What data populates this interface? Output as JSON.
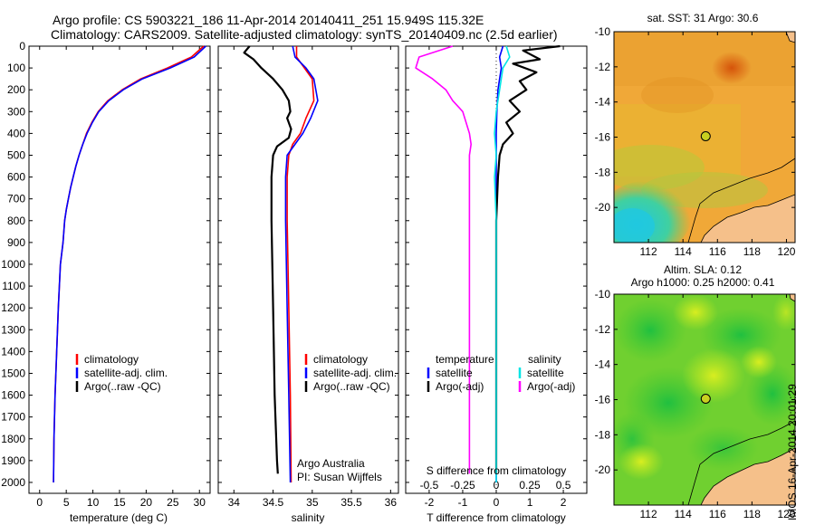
{
  "header": {
    "title_line1": "Argo profile: CS 5903221_186 11-Apr-2014 20140411_251 15.949S 115.32E",
    "title_line2": "Climatology: CARS2009. Satellite-adjusted climatology: synTS_20140409.nc (2.5d earlier)"
  },
  "stamp": "IMOS 16-Apr-2014 20:01:29",
  "chart_data": [
    {
      "type": "line",
      "ylim": [
        2050,
        0
      ],
      "yticks": [
        "0",
        "100",
        "200",
        "300",
        "400",
        "500",
        "600",
        "700",
        "800",
        "900",
        "1000",
        "1100",
        "1200",
        "1300",
        "1400",
        "1500",
        "1600",
        "1700",
        "1800",
        "1900",
        "2000"
      ],
      "xlabel": "temperature (deg C)",
      "xlim": [
        -2,
        32
      ],
      "xticks": [
        "0",
        "5",
        "10",
        "15",
        "20",
        "25",
        "30"
      ],
      "legend": {
        "position": "lower-center",
        "entries": [
          "climatology",
          "satellite-adj. clim.",
          "Argo(..raw -QC)"
        ]
      },
      "series": [
        {
          "name": "climatology",
          "color": "#ff0000",
          "x": [
            30.8,
            28.5,
            24,
            19,
            15.5,
            12.8,
            11,
            9.8,
            8.8,
            8.1,
            7.4,
            6.8,
            6.3,
            5.8,
            5.4,
            5.0,
            4.7,
            4.4,
            3.9,
            3.5,
            3.2,
            2.9,
            2.7,
            2.6
          ],
          "y": [
            0,
            50,
            100,
            150,
            200,
            250,
            300,
            350,
            400,
            450,
            500,
            550,
            600,
            650,
            700,
            750,
            800,
            900,
            1000,
            1200,
            1400,
            1600,
            1800,
            2000
          ]
        },
        {
          "name": "satellite-adj. clim.",
          "color": "#0000ff",
          "x": [
            31.2,
            29,
            24.5,
            19.3,
            15.7,
            13,
            11.1,
            9.9,
            8.9,
            8.1,
            7.4,
            6.8,
            6.3,
            5.8,
            5.4,
            5.0,
            4.7,
            4.4,
            3.9,
            3.5,
            3.2,
            2.9,
            2.7,
            2.6
          ],
          "y": [
            0,
            50,
            100,
            150,
            200,
            250,
            300,
            350,
            400,
            450,
            500,
            550,
            600,
            650,
            700,
            750,
            800,
            900,
            1000,
            1200,
            1400,
            1600,
            1800,
            2000
          ]
        }
      ]
    },
    {
      "type": "line",
      "ylim": [
        2050,
        0
      ],
      "xlabel": "salinity",
      "xlim": [
        33.8,
        36.1
      ],
      "xticks": [
        "34",
        "34.5",
        "35",
        "35.5",
        "36"
      ],
      "legend": {
        "position": "lower-center",
        "entries": [
          "climatology",
          "satellite-adj. clim.",
          "Argo(..raw -QC)"
        ]
      },
      "annotations": [
        "Argo Australia",
        "PI: Susan Wijffels"
      ],
      "series": [
        {
          "name": "climatology",
          "color": "#ff0000",
          "x": [
            34.8,
            34.8,
            34.9,
            35.0,
            35.02,
            34.92,
            34.85,
            34.75,
            34.7,
            34.68,
            34.68,
            34.7,
            34.72,
            34.73
          ],
          "y": [
            0,
            50,
            100,
            150,
            250,
            330,
            400,
            450,
            500,
            600,
            800,
            1200,
            1600,
            2000
          ]
        },
        {
          "name": "satellite-adj. clim.",
          "color": "#0000ff",
          "x": [
            34.75,
            34.78,
            34.92,
            35.02,
            35.07,
            34.98,
            34.88,
            34.78,
            34.68,
            34.66,
            34.66,
            34.68,
            34.7,
            34.72
          ],
          "y": [
            0,
            50,
            100,
            150,
            250,
            330,
            400,
            450,
            500,
            600,
            800,
            1200,
            1600,
            2000
          ]
        },
        {
          "name": "Argo(..raw -QC)",
          "color": "#000000",
          "x": [
            34.2,
            34.13,
            34.25,
            34.35,
            34.5,
            34.62,
            34.7,
            34.72,
            34.68,
            34.73,
            34.7,
            34.55,
            34.5,
            34.48,
            34.48,
            34.5,
            34.52,
            34.55,
            34.56
          ],
          "y": [
            0,
            30,
            60,
            100,
            150,
            200,
            250,
            300,
            330,
            380,
            420,
            460,
            500,
            600,
            800,
            1200,
            1600,
            1900,
            1960
          ]
        }
      ]
    },
    {
      "type": "line",
      "ylim": [
        2050,
        0
      ],
      "xlabel": "T difference from climatology",
      "xlim": [
        -2.7,
        2.7
      ],
      "xticks": [
        "-2",
        "-1",
        "0",
        "1",
        "2"
      ],
      "x2label": "S difference from climatology",
      "x2ticks": [
        "-0.5",
        "-0.25",
        "0",
        "0.25",
        "0.5"
      ],
      "legend": {
        "position": "lower-center",
        "entries": [
          "temperature",
          "salinity",
          "satellite",
          "satellite",
          "Argo(-adj)",
          "Argo(-adj)"
        ]
      },
      "series": [
        {
          "name": "satellite",
          "color": "#0000ff",
          "x": [
            0.2,
            0.1,
            0.15,
            0.1,
            0.05,
            0.02,
            0,
            0,
            0,
            0,
            0
          ],
          "y": [
            0,
            50,
            100,
            150,
            200,
            300,
            400,
            600,
            1000,
            1500,
            2000
          ]
        },
        {
          "name": "Argo(-adj)",
          "color": "#000000",
          "x": [
            1.9,
            0.8,
            1.3,
            0.5,
            1.2,
            0.7,
            0.9,
            0.4,
            0.7,
            0.3,
            0.5,
            0.2,
            0.1,
            0.05,
            0.0,
            0.0,
            0.0,
            0.0
          ],
          "y": [
            0,
            20,
            60,
            80,
            120,
            160,
            200,
            250,
            300,
            350,
            400,
            450,
            500,
            600,
            800,
            1200,
            1600,
            1960
          ]
        },
        {
          "name": "satellite",
          "color": "#00e5e5",
          "x": [
            0.3,
            0.4,
            0.2,
            0.1,
            0.0,
            -0.05,
            0.0,
            -0.05,
            0.0,
            0.0,
            0.0,
            0.0
          ],
          "y": [
            0,
            50,
            100,
            200,
            300,
            400,
            500,
            600,
            800,
            1200,
            1600,
            2000
          ]
        },
        {
          "name": "Argo(-adj)",
          "color": "#ff00ff",
          "x": [
            -1.3,
            -2.3,
            -2.4,
            -1.9,
            -1.5,
            -1.3,
            -1.0,
            -0.8,
            -0.75,
            -0.8,
            -0.8,
            -0.8,
            -0.8
          ],
          "y": [
            0,
            50,
            100,
            150,
            200,
            250,
            300,
            400,
            450,
            500,
            800,
            1400,
            1960
          ]
        }
      ]
    },
    {
      "type": "heatmap",
      "title": "sat. SST: 31 Argo: 30.6",
      "xlim": [
        110,
        120.5
      ],
      "ylim": [
        -22,
        -10
      ],
      "xticks": [
        "112",
        "114",
        "116",
        "118",
        "120"
      ],
      "yticks": [
        "-10",
        "-12",
        "-14",
        "-16",
        "-18",
        "-20"
      ],
      "marker": {
        "lon": 115.32,
        "lat": -15.949
      }
    },
    {
      "type": "heatmap",
      "title": "Altim. SLA: 0.12",
      "subtitle": "Argo h1000: 0.25 h2000: 0.41",
      "xlim": [
        110,
        120.5
      ],
      "ylim": [
        -22,
        -10
      ],
      "xticks": [
        "112",
        "114",
        "116",
        "118",
        "120"
      ],
      "yticks": [
        "-10",
        "-12",
        "-14",
        "-16",
        "-18",
        "-20"
      ],
      "marker": {
        "lon": 115.32,
        "lat": -15.949
      }
    }
  ]
}
